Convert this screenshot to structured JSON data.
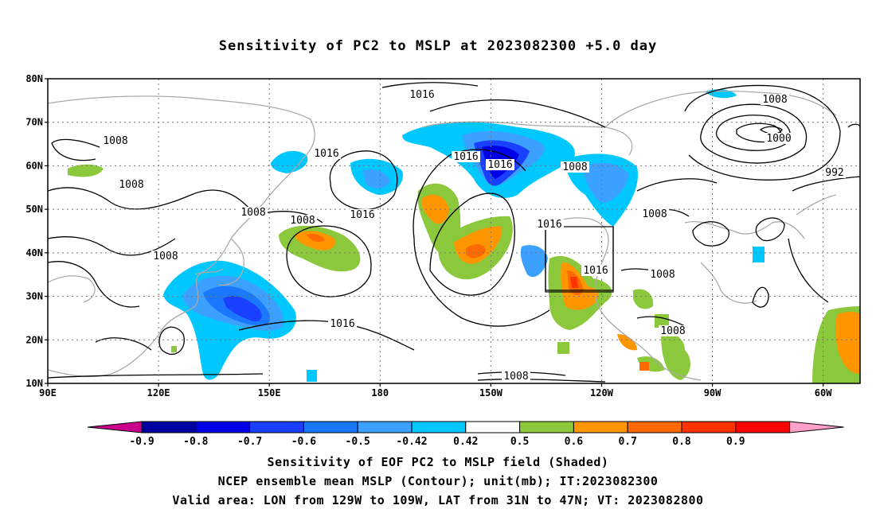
{
  "title": "Sensitivity of PC2 to MSLP at 2023082300 +5.0 day",
  "captions": {
    "line1": "Sensitivity of EOF PC2 to MSLP field (Shaded)",
    "line2": "NCEP ensemble mean MSLP (Contour); unit(mb); IT:2023082300",
    "line3": "Valid area: LON from 129W to 109W, LAT from 31N to 47N; VT: 2023082800"
  },
  "map": {
    "lat_range": [
      10,
      80
    ],
    "lon_range_east": [
      90,
      310
    ],
    "lat_ticks": [
      "10N",
      "20N",
      "30N",
      "40N",
      "50N",
      "60N",
      "70N",
      "80N"
    ],
    "lon_ticks": [
      "90E",
      "120E",
      "150E",
      "180",
      "150W",
      "120W",
      "90W",
      "60W"
    ],
    "valid_box": {
      "lon_w": -129,
      "lon_e": -109,
      "lat_s": 31,
      "lat_n": 47
    },
    "contour_labels": [
      "1016",
      "1008",
      "1008",
      "1016",
      "1016",
      "1016",
      "1008",
      "1008",
      "1016",
      "1008",
      "1016",
      "1008",
      "1008",
      "1016",
      "1016",
      "1008",
      "1008",
      "1008",
      "1008",
      "1000",
      "992",
      "1016",
      "1008"
    ],
    "colors": {
      "land": "#aaaaaa",
      "contour": "#000000",
      "grid": "#777777"
    }
  },
  "colorbar": {
    "labels": [
      "-0.9",
      "-0.8",
      "-0.7",
      "-0.6",
      "-0.5",
      "-0.42",
      "0.42",
      "0.5",
      "0.6",
      "0.7",
      "0.8",
      "0.9"
    ],
    "colors": [
      "#c8008c",
      "#0000a0",
      "#0000e6",
      "#1a40ff",
      "#1a78ff",
      "#3ca0ff",
      "#00c8ff",
      "#ffffff",
      "#8cc83c",
      "#ff9600",
      "#ff6a00",
      "#ff3200",
      "#ff0000",
      "#ffa0c8"
    ]
  }
}
